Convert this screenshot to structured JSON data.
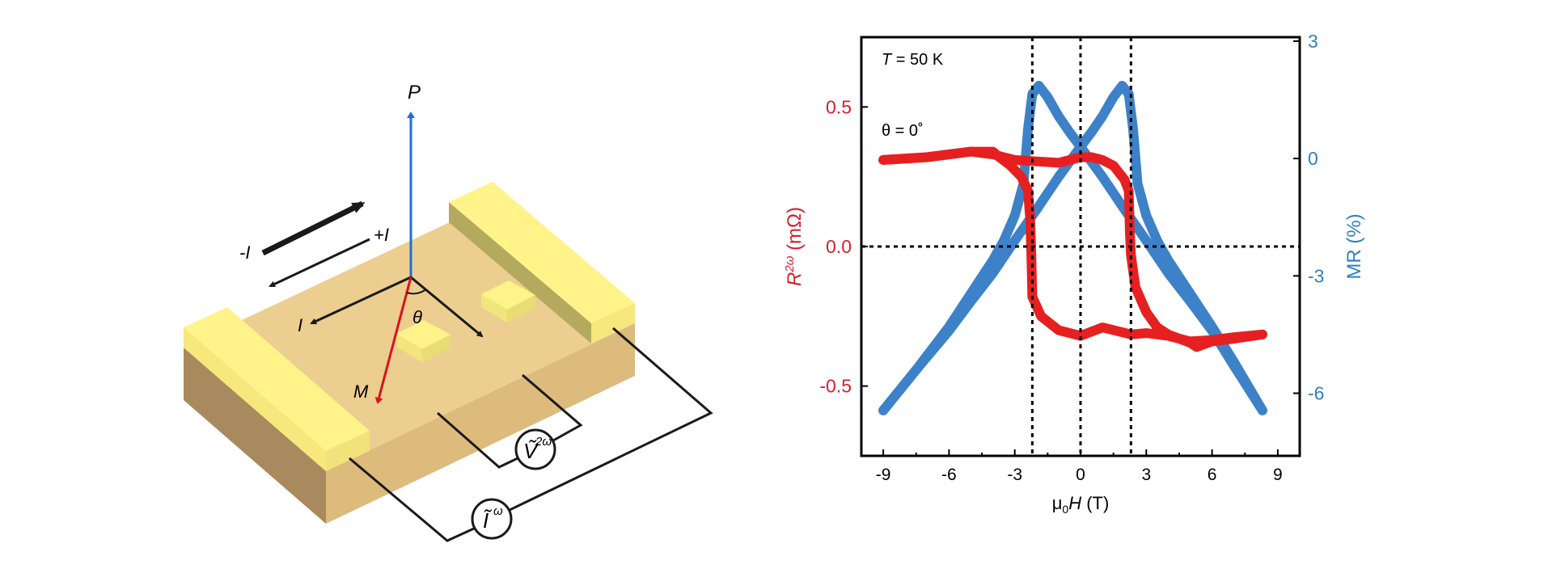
{
  "diagram": {
    "labels": {
      "P": "P",
      "minus_I": "-I",
      "plus_I": "+I",
      "I": "I",
      "theta": "θ",
      "M": "M",
      "V": "Ṽ",
      "V_sup": "2ω",
      "Ic": "Ĩ",
      "Ic_sup": "ω"
    },
    "colors": {
      "P_arrow": "#1f6fd8",
      "M_arrow": "#d8141c",
      "slab_top": "#ecce90",
      "slab_front": "#dcbb7c",
      "slab_side": "#a88a5e",
      "electrode_top": "#fff38a",
      "electrode_side": "#b4aa5e",
      "electrode_front": "#f6e87c"
    }
  },
  "chart_data": {
    "type": "line",
    "xlabel": "μ0H (T)",
    "xlabel_parts": {
      "mu": "μ",
      "sub": "0",
      "H": "H",
      "unit": " (T)"
    },
    "ylabel_left": {
      "R": "R",
      "sup": "2ω",
      "unit": " (mΩ)"
    },
    "ylabel_right": "MR (%)",
    "xlim": [
      -10,
      10
    ],
    "ylim_left": [
      -0.75,
      0.75
    ],
    "ylim_right": [
      -7.6,
      3.1
    ],
    "x_ticks": [
      "-9",
      "-6",
      "-3",
      "0",
      "3",
      "6",
      "9"
    ],
    "y_left_ticks": [
      "0.5",
      "0.0",
      "-0.5"
    ],
    "y_right_ticks": [
      "3",
      "0",
      "-3",
      "-6"
    ],
    "annotations": {
      "T_sym": "T",
      "T_val": " = 50 K",
      "theta": "θ = 0˚"
    },
    "reference_lines": {
      "vertical_x": [
        -2.2,
        0,
        2.3
      ],
      "horizontal_y_left": 0
    },
    "colors": {
      "r2w": "#e62020",
      "mr": "#3d82c8",
      "left_axis": "#d41f2b",
      "right_axis": "#2f80c0"
    },
    "series": [
      {
        "axis": "left",
        "color": "#e62020",
        "branch": "up",
        "x": [
          -9,
          -7,
          -6,
          -5,
          -4,
          -3.5,
          -3,
          -2,
          -1,
          0,
          0.5,
          1,
          1.5,
          2.0,
          2.2,
          2.25,
          2.3,
          2.5,
          3.0,
          3.5,
          4.0,
          5.0,
          5.3,
          6,
          7,
          8.3
        ],
        "y": [
          0.31,
          0.32,
          0.33,
          0.34,
          0.33,
          0.32,
          0.31,
          0.305,
          0.3,
          0.32,
          0.32,
          0.31,
          0.29,
          0.24,
          0.2,
          0.05,
          -0.03,
          -0.145,
          -0.235,
          -0.29,
          -0.315,
          -0.345,
          -0.36,
          -0.34,
          -0.33,
          -0.315
        ]
      },
      {
        "axis": "left",
        "color": "#e62020",
        "branch": "down",
        "x": [
          8.3,
          7,
          6,
          5,
          4,
          3,
          2.3,
          1,
          0,
          -1,
          -1.8,
          -2.2,
          -2.25,
          -2.3,
          -2.4,
          -2.7,
          -3.2,
          -3.7,
          -4.0,
          -5,
          -7,
          -9
        ],
        "y": [
          -0.315,
          -0.325,
          -0.335,
          -0.34,
          -0.32,
          -0.31,
          -0.315,
          -0.29,
          -0.32,
          -0.3,
          -0.25,
          -0.18,
          -0.01,
          0.1,
          0.2,
          0.25,
          0.29,
          0.32,
          0.34,
          0.34,
          0.32,
          0.31
        ]
      },
      {
        "axis": "right",
        "color": "#3d82c8",
        "branch": "up",
        "x": [
          -9,
          -7.5,
          -6,
          -5,
          -4,
          -3,
          -2,
          -1,
          0,
          0.5,
          1,
          1.5,
          1.9,
          2.2,
          2.4,
          2.6,
          3.0,
          3.5,
          4,
          5,
          6,
          7,
          8.3
        ],
        "y": [
          -6.44,
          -5.4,
          -4.4,
          -3.65,
          -2.93,
          -2.1,
          -1.3,
          -0.47,
          0.3,
          0.67,
          1.08,
          1.57,
          1.86,
          1.65,
          0.75,
          -0.64,
          -1.46,
          -2.1,
          -2.6,
          -3.45,
          -4.3,
          -5.2,
          -6.44
        ]
      },
      {
        "axis": "right",
        "color": "#3d82c8",
        "branch": "down",
        "x": [
          8.3,
          7,
          6,
          5,
          4,
          3,
          2,
          1,
          0,
          -0.5,
          -1,
          -1.5,
          -1.9,
          -2.2,
          -2.4,
          -2.6,
          -3.0,
          -3.5,
          -4,
          -5,
          -6,
          -7.5,
          -9
        ],
        "y": [
          -6.44,
          -5.3,
          -4.4,
          -3.65,
          -2.93,
          -2.1,
          -1.3,
          -0.47,
          0.3,
          0.67,
          1.08,
          1.57,
          1.86,
          1.65,
          0.75,
          -0.64,
          -1.46,
          -2.1,
          -2.6,
          -3.45,
          -4.3,
          -5.4,
          -6.44
        ]
      }
    ]
  }
}
